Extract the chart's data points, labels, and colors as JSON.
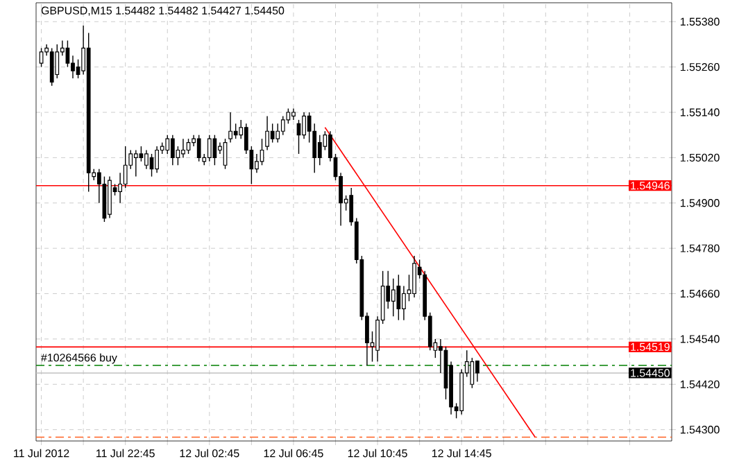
{
  "chart_data": {
    "type": "candlestick",
    "title": "GBPUSD,M15  1.54482 1.54482 1.54427 1.54450",
    "x": [
      "2012-07-11T18:45",
      "2012-07-11T19:00",
      "2012-07-11T19:15",
      "2012-07-11T19:30",
      "2012-07-11T19:45",
      "2012-07-11T20:00",
      "2012-07-11T20:15",
      "2012-07-11T20:30",
      "2012-07-11T20:45",
      "2012-07-11T21:00",
      "2012-07-11T21:15",
      "2012-07-11T21:30",
      "2012-07-11T21:45",
      "2012-07-11T22:00",
      "2012-07-11T22:15",
      "2012-07-11T22:30",
      "2012-07-11T22:45",
      "2012-07-11T23:00",
      "2012-07-11T23:15",
      "2012-07-11T23:30",
      "2012-07-11T23:45",
      "2012-07-12T00:00",
      "2012-07-12T00:15",
      "2012-07-12T00:30",
      "2012-07-12T00:45",
      "2012-07-12T01:00",
      "2012-07-12T01:15",
      "2012-07-12T01:30",
      "2012-07-12T01:45",
      "2012-07-12T02:00",
      "2012-07-12T02:15",
      "2012-07-12T02:30",
      "2012-07-12T02:45",
      "2012-07-12T03:00",
      "2012-07-12T03:15",
      "2012-07-12T03:30",
      "2012-07-12T03:45",
      "2012-07-12T04:00",
      "2012-07-12T04:15",
      "2012-07-12T04:30",
      "2012-07-12T04:45",
      "2012-07-12T05:00",
      "2012-07-12T05:15",
      "2012-07-12T05:30",
      "2012-07-12T05:45",
      "2012-07-12T06:00",
      "2012-07-12T06:15",
      "2012-07-12T06:30",
      "2012-07-12T06:45",
      "2012-07-12T07:00",
      "2012-07-12T07:15",
      "2012-07-12T07:30",
      "2012-07-12T07:45",
      "2012-07-12T08:00",
      "2012-07-12T08:15",
      "2012-07-12T08:30",
      "2012-07-12T08:45",
      "2012-07-12T09:00",
      "2012-07-12T09:15",
      "2012-07-12T09:30",
      "2012-07-12T09:45",
      "2012-07-12T10:00",
      "2012-07-12T10:15",
      "2012-07-12T10:30",
      "2012-07-12T10:45",
      "2012-07-12T11:00",
      "2012-07-12T11:15",
      "2012-07-12T11:30",
      "2012-07-12T11:45",
      "2012-07-12T12:00",
      "2012-07-12T12:15",
      "2012-07-12T12:30",
      "2012-07-12T12:45",
      "2012-07-12T13:00",
      "2012-07-12T13:15",
      "2012-07-12T13:30",
      "2012-07-12T13:45",
      "2012-07-12T14:00",
      "2012-07-12T14:15",
      "2012-07-12T14:30",
      "2012-07-12T14:45",
      "2012-07-12T15:00",
      "2012-07-12T15:15",
      "2012-07-12T15:30"
    ],
    "ohlc": [
      [
        1.5527,
        1.5531,
        1.5526,
        1.553
      ],
      [
        1.553,
        1.5532,
        1.5529,
        1.5531
      ],
      [
        1.553,
        1.5531,
        1.5521,
        1.5522
      ],
      [
        1.5524,
        1.5532,
        1.5523,
        1.553
      ],
      [
        1.553,
        1.5533,
        1.5529,
        1.5531
      ],
      [
        1.5531,
        1.5533,
        1.5526,
        1.5527
      ],
      [
        1.5527,
        1.5529,
        1.5523,
        1.5525
      ],
      [
        1.5526,
        1.5528,
        1.5523,
        1.5524
      ],
      [
        1.5525,
        1.5537,
        1.5524,
        1.5531
      ],
      [
        1.5531,
        1.5535,
        1.5493,
        1.5498
      ],
      [
        1.5497,
        1.5499,
        1.5496,
        1.5498
      ],
      [
        1.5498,
        1.5499,
        1.549,
        1.5495
      ],
      [
        1.5495,
        1.5497,
        1.5485,
        1.5486
      ],
      [
        1.5487,
        1.5497,
        1.5486,
        1.5496
      ],
      [
        1.5494,
        1.5495,
        1.5492,
        1.5493
      ],
      [
        1.5493,
        1.5498,
        1.549,
        1.5495
      ],
      [
        1.5495,
        1.5505,
        1.5494,
        1.55
      ],
      [
        1.55,
        1.5504,
        1.5499,
        1.5503
      ],
      [
        1.5502,
        1.5504,
        1.5497,
        1.5503
      ],
      [
        1.5503,
        1.5505,
        1.5501,
        1.5502
      ],
      [
        1.55,
        1.5504,
        1.5499,
        1.5503
      ],
      [
        1.5502,
        1.5503,
        1.5497,
        1.5499
      ],
      [
        1.5499,
        1.5505,
        1.5498,
        1.5504
      ],
      [
        1.5504,
        1.5506,
        1.5503,
        1.5505
      ],
      [
        1.5504,
        1.5508,
        1.5503,
        1.5507
      ],
      [
        1.5507,
        1.5508,
        1.55,
        1.5502
      ],
      [
        1.5502,
        1.5505,
        1.55,
        1.5504
      ],
      [
        1.5503,
        1.5507,
        1.5502,
        1.5504
      ],
      [
        1.5504,
        1.5507,
        1.5503,
        1.5506
      ],
      [
        1.5506,
        1.5508,
        1.5505,
        1.5507
      ],
      [
        1.5507,
        1.5508,
        1.5501,
        1.5502
      ],
      [
        1.5501,
        1.5503,
        1.55,
        1.5502
      ],
      [
        1.5502,
        1.5508,
        1.5501,
        1.5507
      ],
      [
        1.5507,
        1.5508,
        1.55,
        1.5502
      ],
      [
        1.5504,
        1.5506,
        1.5503,
        1.5505
      ],
      [
        1.55,
        1.5507,
        1.5499,
        1.5506
      ],
      [
        1.5507,
        1.5514,
        1.5506,
        1.5509
      ],
      [
        1.5509,
        1.5511,
        1.5507,
        1.5508
      ],
      [
        1.5508,
        1.5512,
        1.5507,
        1.551
      ],
      [
        1.551,
        1.5511,
        1.5503,
        1.5504
      ],
      [
        1.5504,
        1.5505,
        1.5495,
        1.5499
      ],
      [
        1.5499,
        1.5503,
        1.5498,
        1.5501
      ],
      [
        1.5501,
        1.5507,
        1.55,
        1.5504
      ],
      [
        1.5505,
        1.5513,
        1.5504,
        1.5509
      ],
      [
        1.5509,
        1.5511,
        1.5506,
        1.5507
      ],
      [
        1.5507,
        1.5511,
        1.5506,
        1.5509
      ],
      [
        1.5509,
        1.5513,
        1.5508,
        1.5512
      ],
      [
        1.5512,
        1.5515,
        1.5511,
        1.5514
      ],
      [
        1.5513,
        1.5515,
        1.5512,
        1.5514
      ],
      [
        1.5511,
        1.5512,
        1.5503,
        1.5508
      ],
      [
        1.5508,
        1.5514,
        1.5507,
        1.5513
      ],
      [
        1.5513,
        1.5514,
        1.5506,
        1.5509
      ],
      [
        1.5509,
        1.5511,
        1.5498,
        1.5502
      ],
      [
        1.5506,
        1.5508,
        1.55,
        1.5502
      ],
      [
        1.5505,
        1.5509,
        1.5504,
        1.5508
      ],
      [
        1.5508,
        1.5509,
        1.5501,
        1.5502
      ],
      [
        1.5502,
        1.5503,
        1.5496,
        1.5497
      ],
      [
        1.5497,
        1.5498,
        1.5484,
        1.549
      ],
      [
        1.549,
        1.5492,
        1.5488,
        1.5491
      ],
      [
        1.5492,
        1.5494,
        1.5484,
        1.5485
      ],
      [
        1.5485,
        1.5486,
        1.5474,
        1.5475
      ],
      [
        1.5475,
        1.5476,
        1.5459,
        1.546
      ],
      [
        1.546,
        1.5461,
        1.5447,
        1.5453
      ],
      [
        1.5452,
        1.5456,
        1.5448,
        1.5453
      ],
      [
        1.5451,
        1.546,
        1.5448,
        1.5459
      ],
      [
        1.5459,
        1.5472,
        1.5458,
        1.5468
      ],
      [
        1.5468,
        1.5472,
        1.5462,
        1.5464
      ],
      [
        1.5464,
        1.547,
        1.546,
        1.5467
      ],
      [
        1.5468,
        1.5471,
        1.5459,
        1.5462
      ],
      [
        1.5462,
        1.5468,
        1.5459,
        1.5466
      ],
      [
        1.5466,
        1.5471,
        1.5464,
        1.5467
      ],
      [
        1.5466,
        1.5476,
        1.5465,
        1.5474
      ],
      [
        1.5473,
        1.5475,
        1.547,
        1.5471
      ],
      [
        1.5471,
        1.5472,
        1.5459,
        1.546
      ],
      [
        1.546,
        1.5461,
        1.5451,
        1.5452
      ],
      [
        1.5451,
        1.5454,
        1.5449,
        1.5453
      ],
      [
        1.5452,
        1.5454,
        1.5445,
        1.5451
      ],
      [
        1.5451,
        1.5452,
        1.5438,
        1.5441
      ],
      [
        1.5447,
        1.5448,
        1.5434,
        1.5436
      ],
      [
        1.5436,
        1.5437,
        1.5433,
        1.5435
      ],
      [
        1.5435,
        1.5446,
        1.5434,
        1.5445
      ],
      [
        1.5445,
        1.5451,
        1.5444,
        1.5448
      ],
      [
        1.5442,
        1.5449,
        1.5441,
        1.5448
      ],
      [
        1.54482,
        1.54482,
        1.54427,
        1.5445
      ]
    ],
    "series": [
      {
        "type": "line",
        "color": "#ff0000",
        "x": [
          "2012-07-12T08:15",
          "2012-07-12T18:15"
        ],
        "values": [
          1.551,
          1.5428
        ]
      }
    ],
    "xlim": [
      "2012-07-11T18:30",
      "2012-07-13T00:45"
    ],
    "xticks": [
      {
        "value": "2012-07-11T18:45",
        "label": "11 Jul 2012"
      },
      {
        "value": "2012-07-11T20:45",
        "label": null
      },
      {
        "value": "2012-07-11T22:45",
        "label": "11 Jul 22:45"
      },
      {
        "value": "2012-07-12T00:45",
        "label": null
      },
      {
        "value": "2012-07-12T02:45",
        "label": "12 Jul 02:45"
      },
      {
        "value": "2012-07-12T04:45",
        "label": null
      },
      {
        "value": "2012-07-12T06:45",
        "label": "12 Jul 06:45"
      },
      {
        "value": "2012-07-12T08:45",
        "label": null
      },
      {
        "value": "2012-07-12T10:45",
        "label": "12 Jul 10:45"
      },
      {
        "value": "2012-07-12T12:45",
        "label": null
      },
      {
        "value": "2012-07-12T14:45",
        "label": "12 Jul 14:45"
      },
      {
        "value": "2012-07-12T16:45",
        "label": null
      },
      {
        "value": "2012-07-12T18:45",
        "label": null
      },
      {
        "value": "2012-07-12T20:45",
        "label": null
      },
      {
        "value": "2012-07-12T22:45",
        "label": null
      }
    ],
    "ylim": [
      1.5427,
      1.5543
    ],
    "yticks": [
      {
        "value": 1.543,
        "label": "1.54300"
      },
      {
        "value": 1.5442,
        "label": "1.54420"
      },
      {
        "value": 1.5454,
        "label": "1.54540"
      },
      {
        "value": 1.5466,
        "label": "1.54660"
      },
      {
        "value": 1.5478,
        "label": "1.54780"
      },
      {
        "value": 1.549,
        "label": "1.54900"
      },
      {
        "value": 1.5502,
        "label": "1.55020"
      },
      {
        "value": 1.5514,
        "label": "1.55140"
      },
      {
        "value": 1.5526,
        "label": "1.55260"
      },
      {
        "value": 1.5538,
        "label": "1.55380"
      }
    ],
    "ref_lines": [
      {
        "axis": "y",
        "value": 1.54946,
        "label": "1.54946",
        "color": "#ff0000",
        "line_style": "solid"
      },
      {
        "axis": "y",
        "value": 1.54519,
        "label": "1.54519",
        "color": "#ff0000",
        "line_style": "solid"
      },
      {
        "axis": "y",
        "value": 1.5447,
        "label": "#10264566 buy",
        "color": "#008000",
        "line_style": "dashed"
      },
      {
        "axis": "y",
        "value": 1.5445,
        "label": "1.54450",
        "color": "#c0c0c0",
        "line_style": "solid"
      },
      {
        "axis": "y",
        "value": 1.5428,
        "color": "#ff6020",
        "line_style": "dashed"
      }
    ],
    "grid": true
  }
}
